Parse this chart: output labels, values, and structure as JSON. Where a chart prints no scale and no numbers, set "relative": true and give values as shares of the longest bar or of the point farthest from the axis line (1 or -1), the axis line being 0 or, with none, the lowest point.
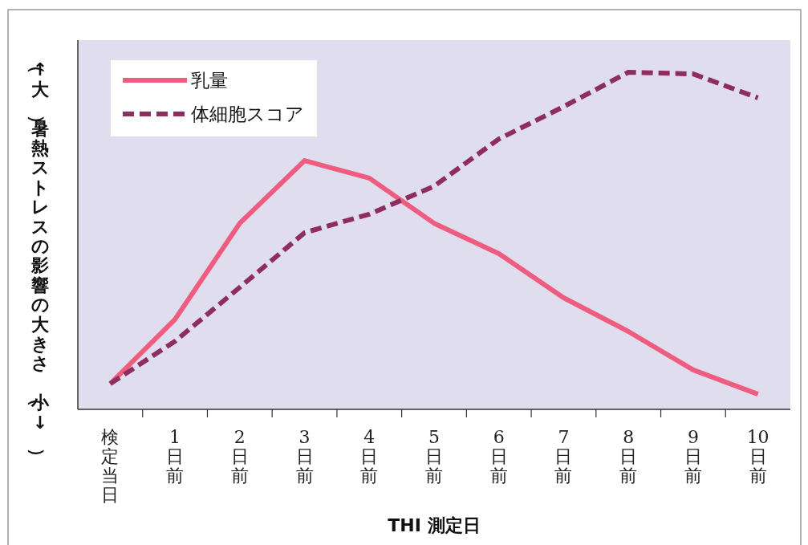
{
  "chart_data": {
    "type": "line",
    "relative": true,
    "xlabel": "THI 測定日",
    "ylabel": "（↑大）暑熱ストレスの影響の大きさ（小↓）",
    "legend": "top left",
    "grid": false,
    "categories": [
      "検定当日",
      "1日前",
      "2日前",
      "3日前",
      "4日前",
      "5日前",
      "6日前",
      "7日前",
      "8日前",
      "9日前",
      "10日前"
    ],
    "series": [
      {
        "name": "乳量",
        "color": "#ee5c7f",
        "line_style": "solid",
        "values": [
          0.076,
          0.267,
          0.552,
          0.738,
          0.686,
          0.552,
          0.462,
          0.331,
          0.231,
          0.117,
          0.045
        ]
      },
      {
        "name": "体細胞スコア",
        "color": "#8e2e5e",
        "line_style": "dashed",
        "values": [
          0.076,
          0.202,
          0.362,
          0.524,
          0.579,
          0.662,
          0.802,
          0.898,
          1.0,
          0.995,
          0.924
        ]
      }
    ]
  }
}
